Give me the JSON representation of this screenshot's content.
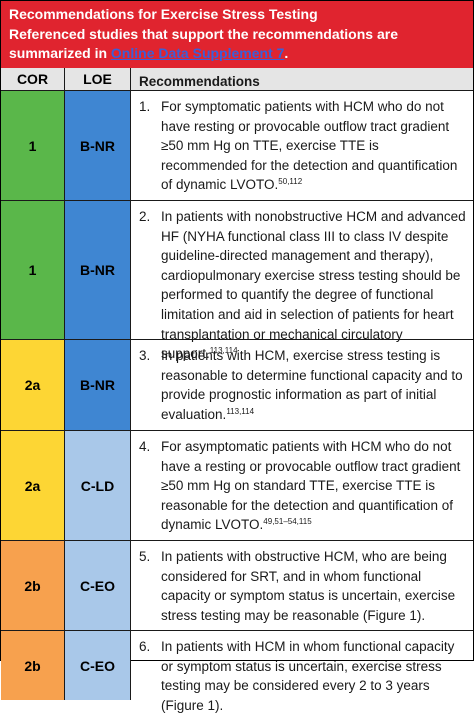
{
  "header": {
    "line1": "Recommendations for Exercise Stress Testing",
    "line2": "Referenced studies that support the recommendations are",
    "line3_prefix": "summarized in ",
    "line3_link": "Online Data Supplement 7",
    "line3_suffix": "."
  },
  "columns": {
    "cor": "COR",
    "loe": "LOE",
    "rec": "Recommendations"
  },
  "colors": {
    "header_bg": "#e0242f",
    "green": "#5ab74a",
    "blue_dark": "#3f86d2",
    "yellow": "#fdd634",
    "blue_light": "#a9c8e9",
    "orange": "#f7a14e"
  },
  "rows": [
    {
      "cor": "1",
      "loe": "B-NR",
      "num": "1.",
      "text": "For symptomatic patients with HCM who do not have resting or provocable outflow tract gradient ≥50 mm Hg on TTE, exercise TTE is recommended for the detection and quantification of dynamic LVOTO.",
      "refs": "50,112"
    },
    {
      "cor": "1",
      "loe": "B-NR",
      "num": "2.",
      "text": "In patients with nonobstructive HCM and advanced HF (NYHA functional class III to class IV despite guideline-directed management and therapy), cardiopulmonary exercise stress testing should be performed to quantify the degree of functional limitation and aid in selection of patients for heart transplantation or mechanical circulatory support.",
      "refs": "113,114"
    },
    {
      "cor": "2a",
      "loe": "B-NR",
      "num": "3.",
      "text": "In patients with HCM, exercise stress testing is reasonable to determine functional capacity and to provide prognostic information as part of initial evaluation.",
      "refs": "113,114"
    },
    {
      "cor": "2a",
      "loe": "C-LD",
      "num": "4.",
      "text": "For asymptomatic patients with HCM who do not have a resting or provocable outflow tract gradient ≥50 mm Hg on standard TTE, exercise TTE is reasonable for the detection and quantification of dynamic LVOTO.",
      "refs": "49,51–54,115"
    },
    {
      "cor": "2b",
      "loe": "C-EO",
      "num": "5.",
      "text": "In patients with obstructive HCM, who are being considered for SRT, and in whom functional capacity or symptom status is uncertain, exercise stress testing may be reasonable (Figure 1).",
      "refs": ""
    },
    {
      "cor": "2b",
      "loe": "C-EO",
      "num": "6.",
      "text": "In patients with HCM in whom functional capacity or symptom status is uncertain, exercise stress testing may be considered every 2 to 3 years (Figure 1).",
      "refs": ""
    }
  ]
}
